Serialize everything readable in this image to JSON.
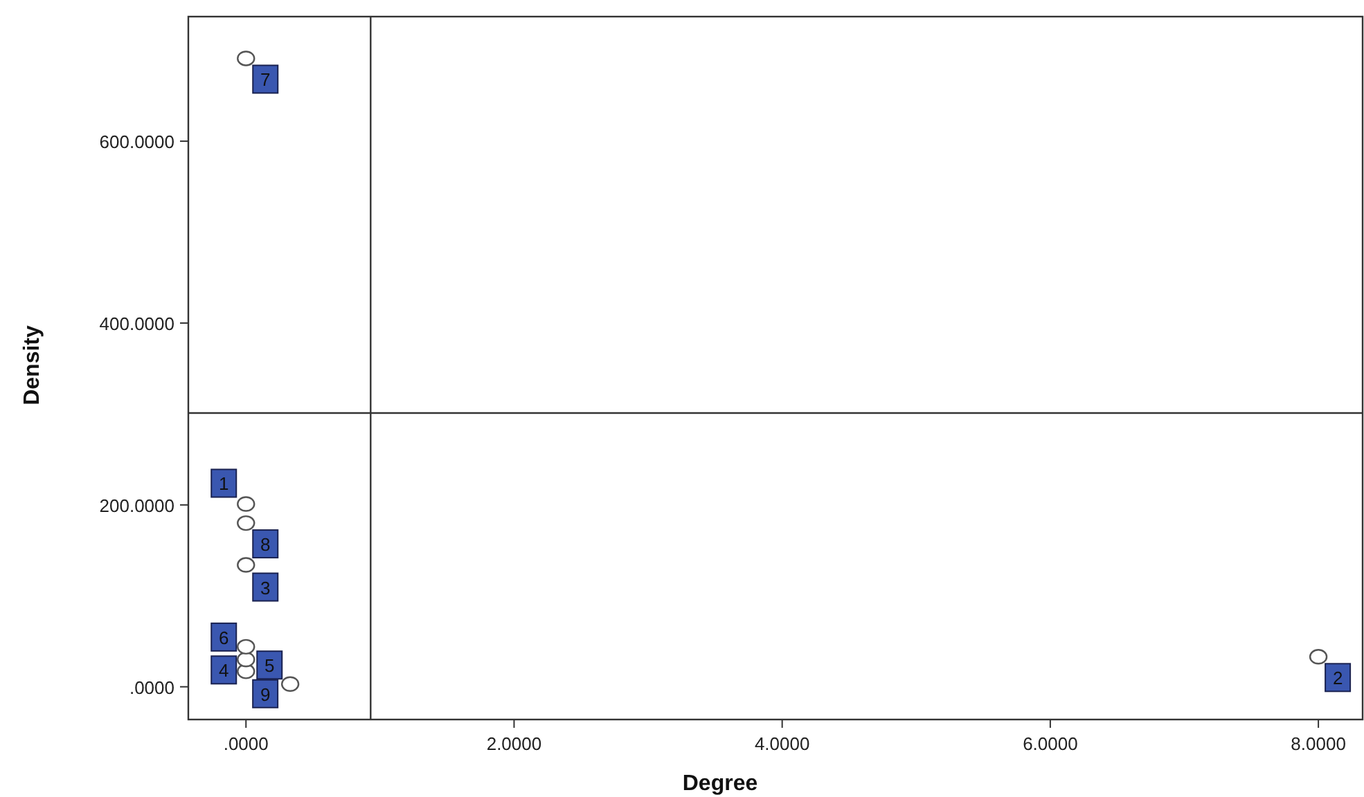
{
  "chart_data": {
    "type": "scatter",
    "xlabel": "Degree",
    "ylabel": "Density",
    "x": [
      0,
      8.0,
      0,
      0,
      0,
      0,
      0,
      0,
      0.33
    ],
    "series": [
      {
        "color": "#555555",
        "values": [
          201,
          33,
          134,
          17,
          30,
          44,
          691,
          180,
          3
        ]
      }
    ],
    "value_labels": [
      "1",
      "2",
      "3",
      "4",
      "5",
      "6",
      "7",
      "8",
      "9"
    ],
    "xlim": [
      -0.43,
      8.33
    ],
    "ylim": [
      -36,
      737
    ],
    "xticks": [
      {
        "value": 0,
        "label": ".0000"
      },
      {
        "value": 2,
        "label": "2.0000"
      },
      {
        "value": 4,
        "label": "4.0000"
      },
      {
        "value": 6,
        "label": "6.0000"
      },
      {
        "value": 8,
        "label": "8.0000"
      }
    ],
    "yticks": [
      {
        "value": 0,
        "label": ".0000"
      },
      {
        "value": 200,
        "label": "200.0000"
      },
      {
        "value": 400,
        "label": "400.0000"
      },
      {
        "value": 600,
        "label": "600.0000"
      }
    ],
    "ref_lines": [
      {
        "axis": "x",
        "value": 0.93,
        "color": "#333333"
      },
      {
        "axis": "y",
        "value": 301,
        "color": "#333333"
      }
    ],
    "marker": "circle",
    "grid": false
  }
}
